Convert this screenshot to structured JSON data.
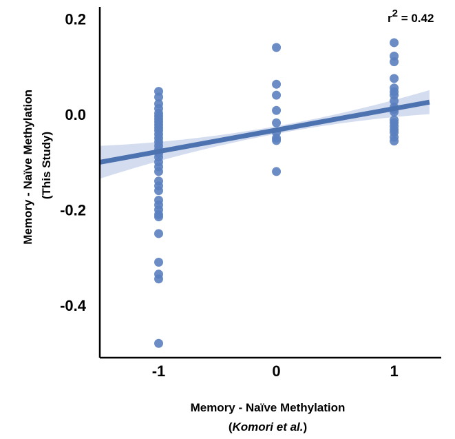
{
  "chart_data": {
    "type": "scatter",
    "title": "",
    "xlabel": {
      "prefix": "(",
      "italic": "Komori et  al.",
      "suffix": ")",
      "line1": "Memory - Naïve Methylation"
    },
    "ylabel": {
      "line1": "Memory - Naïve Methylation",
      "line2": "(This Study)"
    },
    "annotation": {
      "base": "r",
      "sup": "2",
      "rest": " = 0.42"
    },
    "xlim": [
      -1.5,
      1.4
    ],
    "ylim": [
      -0.51,
      0.225
    ],
    "xticks": [
      -1,
      0,
      1
    ],
    "xtick_labels": [
      "-1",
      "0",
      "1"
    ],
    "yticks": [
      -0.4,
      -0.2,
      0.0,
      0.2
    ],
    "ytick_labels": [
      "-0.4",
      "-0.2",
      "0.0",
      "0.2"
    ],
    "point_color": "#5b7fbf",
    "line_color": "#4c72b0",
    "ci_color": "#c6d2ea",
    "regression": {
      "slope": 0.045,
      "intercept": -0.033,
      "x_range": [
        -1.5,
        1.3
      ]
    },
    "points": [
      {
        "x": -1,
        "y": 0.048
      },
      {
        "x": -1,
        "y": 0.036
      },
      {
        "x": -1,
        "y": 0.022
      },
      {
        "x": -1,
        "y": 0.012
      },
      {
        "x": -1,
        "y": 0.002
      },
      {
        "x": -1,
        "y": -0.004
      },
      {
        "x": -1,
        "y": -0.01
      },
      {
        "x": -1,
        "y": -0.016
      },
      {
        "x": -1,
        "y": -0.022
      },
      {
        "x": -1,
        "y": -0.028
      },
      {
        "x": -1,
        "y": -0.034
      },
      {
        "x": -1,
        "y": -0.042
      },
      {
        "x": -1,
        "y": -0.05
      },
      {
        "x": -1,
        "y": -0.058
      },
      {
        "x": -1,
        "y": -0.066
      },
      {
        "x": -1,
        "y": -0.074
      },
      {
        "x": -1,
        "y": -0.082
      },
      {
        "x": -1,
        "y": -0.09
      },
      {
        "x": -1,
        "y": -0.1
      },
      {
        "x": -1,
        "y": -0.11
      },
      {
        "x": -1,
        "y": -0.12
      },
      {
        "x": -1,
        "y": -0.14
      },
      {
        "x": -1,
        "y": -0.15
      },
      {
        "x": -1,
        "y": -0.16
      },
      {
        "x": -1,
        "y": -0.18
      },
      {
        "x": -1,
        "y": -0.19
      },
      {
        "x": -1,
        "y": -0.2
      },
      {
        "x": -1,
        "y": -0.21
      },
      {
        "x": -1,
        "y": -0.215
      },
      {
        "x": -1,
        "y": -0.25
      },
      {
        "x": -1,
        "y": -0.31
      },
      {
        "x": -1,
        "y": -0.335
      },
      {
        "x": -1,
        "y": -0.345
      },
      {
        "x": -1,
        "y": -0.48
      },
      {
        "x": 0,
        "y": 0.14
      },
      {
        "x": 0,
        "y": 0.063
      },
      {
        "x": 0,
        "y": 0.04
      },
      {
        "x": 0,
        "y": 0.008
      },
      {
        "x": 0,
        "y": -0.018
      },
      {
        "x": 0,
        "y": -0.038
      },
      {
        "x": 0,
        "y": -0.05
      },
      {
        "x": 0,
        "y": -0.055
      },
      {
        "x": 0,
        "y": -0.12
      },
      {
        "x": 1,
        "y": 0.15
      },
      {
        "x": 1,
        "y": 0.122
      },
      {
        "x": 1,
        "y": 0.11
      },
      {
        "x": 1,
        "y": 0.075
      },
      {
        "x": 1,
        "y": 0.055
      },
      {
        "x": 1,
        "y": 0.047
      },
      {
        "x": 1,
        "y": 0.04
      },
      {
        "x": 1,
        "y": 0.028
      },
      {
        "x": 1,
        "y": 0.015
      },
      {
        "x": 1,
        "y": 0.01
      },
      {
        "x": 1,
        "y": 0.005
      },
      {
        "x": 1,
        "y": -0.012
      },
      {
        "x": 1,
        "y": -0.018
      },
      {
        "x": 1,
        "y": -0.025
      },
      {
        "x": 1,
        "y": -0.032
      },
      {
        "x": 1,
        "y": -0.038
      },
      {
        "x": 1,
        "y": -0.048
      },
      {
        "x": 1,
        "y": -0.056
      }
    ]
  }
}
